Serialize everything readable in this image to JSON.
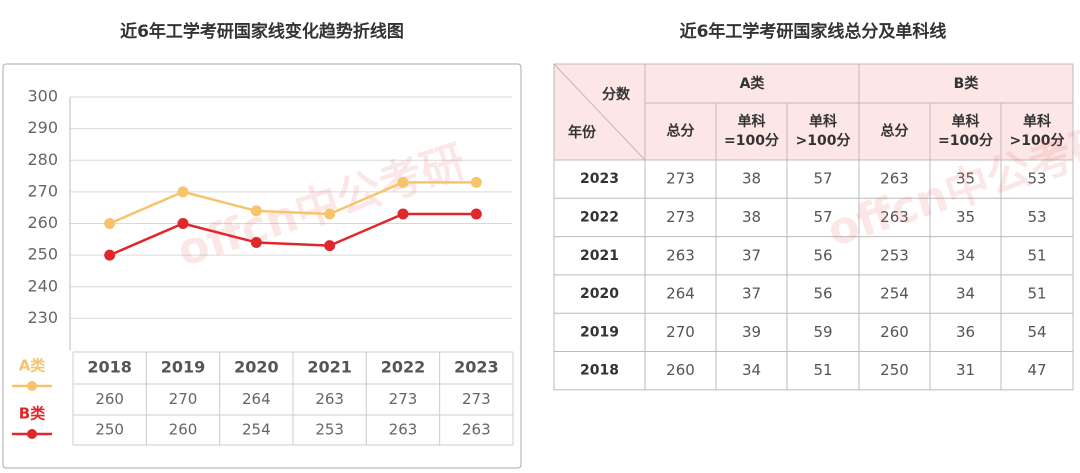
{
  "chart_data": {
    "type": "line",
    "title": "近6年工学考研国家线变化趋势折线图",
    "categories": [
      "2018",
      "2019",
      "2020",
      "2021",
      "2022",
      "2023"
    ],
    "series": [
      {
        "name": "A类",
        "color": "#f7c46c",
        "values": [
          260,
          270,
          264,
          263,
          273,
          273
        ]
      },
      {
        "name": "B类",
        "color": "#e0282c",
        "values": [
          250,
          260,
          254,
          253,
          263,
          263
        ]
      }
    ],
    "ylim": [
      220,
      300
    ],
    "yticks": [
      230,
      240,
      250,
      260,
      270,
      280,
      290,
      300
    ],
    "grid": true
  },
  "table": {
    "title": "近6年工学考研国家线总分及单科线",
    "corner_top": "分数",
    "corner_bottom": "年份",
    "groups": [
      "A类",
      "B类"
    ],
    "columns": [
      [
        "总分"
      ],
      [
        "单科",
        "=100分"
      ],
      [
        "单科",
        ">100分"
      ],
      [
        "总分"
      ],
      [
        "单科",
        "=100分"
      ],
      [
        "单科",
        ">100分"
      ]
    ],
    "rows": [
      [
        "2023",
        273,
        38,
        57,
        263,
        35,
        53
      ],
      [
        "2022",
        273,
        38,
        57,
        263,
        35,
        53
      ],
      [
        "2021",
        263,
        37,
        56,
        253,
        34,
        51
      ],
      [
        "2020",
        264,
        37,
        56,
        254,
        34,
        51
      ],
      [
        "2019",
        270,
        39,
        59,
        260,
        36,
        54
      ],
      [
        "2018",
        260,
        34,
        51,
        250,
        31,
        47
      ]
    ]
  },
  "watermark": "offcn中公考研"
}
